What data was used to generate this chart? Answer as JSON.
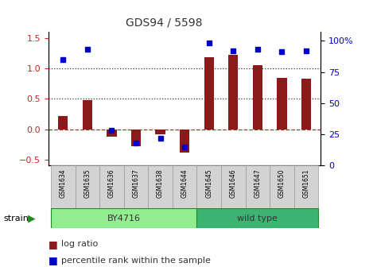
{
  "title": "GDS94 / 5598",
  "samples": [
    "GSM1634",
    "GSM1635",
    "GSM1636",
    "GSM1637",
    "GSM1638",
    "GSM1644",
    "GSM1645",
    "GSM1646",
    "GSM1647",
    "GSM1650",
    "GSM1651"
  ],
  "log_ratio": [
    0.22,
    0.48,
    -0.12,
    -0.28,
    -0.08,
    -0.38,
    1.18,
    1.22,
    1.06,
    0.85,
    0.83
  ],
  "percentile": [
    85,
    93,
    28,
    18,
    22,
    15,
    98,
    92,
    93,
    91,
    92
  ],
  "strain_groups": [
    {
      "label": "BY4716",
      "start": 0,
      "end": 5,
      "color": "#90EE90"
    },
    {
      "label": "wild type",
      "start": 6,
      "end": 10,
      "color": "#3CB371"
    }
  ],
  "bar_color": "#8B1A1A",
  "dot_color": "#0000CC",
  "ylim_left": [
    -0.6,
    1.6
  ],
  "ylim_right": [
    0,
    107
  ],
  "yticks_left": [
    -0.5,
    0.0,
    0.5,
    1.0,
    1.5
  ],
  "yticks_right": [
    0,
    25,
    50,
    75,
    100
  ],
  "yticklabels_right": [
    "0",
    "25",
    "50",
    "75",
    "100%"
  ],
  "hlines": [
    0.0,
    0.5,
    1.0
  ],
  "hline_styles": [
    "dashed",
    "dotted",
    "dotted"
  ],
  "hline_colors": [
    "#CC2222",
    "#333333",
    "#333333"
  ],
  "bg_color": "#FFFFFF",
  "strain_label": "strain",
  "legend_items": [
    "log ratio",
    "percentile rank within the sample"
  ]
}
